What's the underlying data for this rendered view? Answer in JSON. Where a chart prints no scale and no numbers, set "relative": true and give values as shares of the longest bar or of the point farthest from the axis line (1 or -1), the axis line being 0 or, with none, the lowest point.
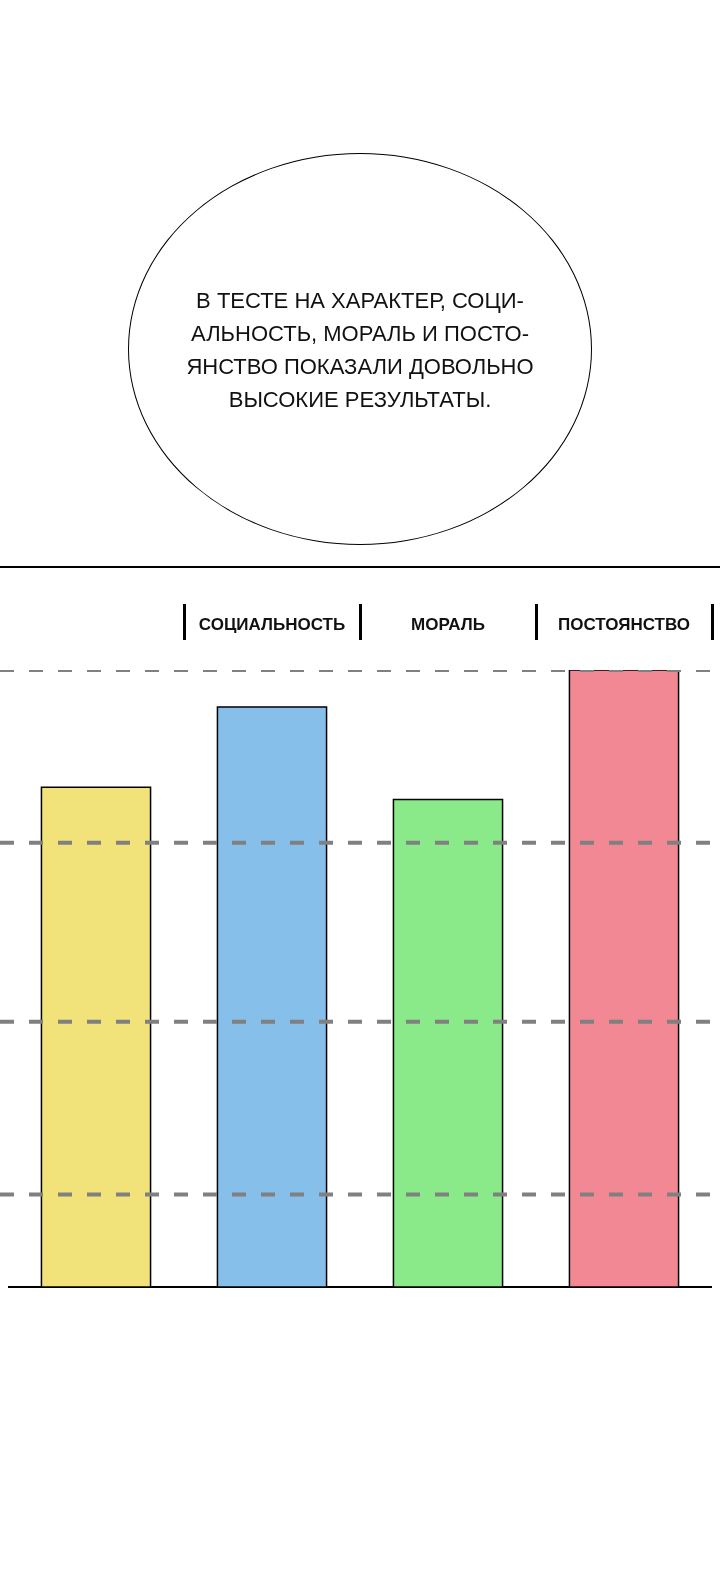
{
  "chart_data": {
    "type": "bar",
    "relative": true,
    "categories": [
      null,
      "СОЦИАЛЬНОСТЬ",
      "МОРАЛЬ",
      "ПОСТОЯНСТВО"
    ],
    "values": [
      0.81,
      0.94,
      0.79,
      1
    ],
    "colors": [
      "#f2e27a",
      "#86bfea",
      "#8aea8a",
      "#f28894"
    ],
    "ref_lines": [
      {
        "axis": "y",
        "value": 1,
        "color": "#808080",
        "line_style": "dashed"
      },
      {
        "axis": "y",
        "value": 0.72,
        "color": "#808080",
        "line_style": "dashed"
      },
      {
        "axis": "y",
        "value": 0.43,
        "color": "#808080",
        "line_style": "dashed"
      },
      {
        "axis": "y",
        "value": 0.15,
        "color": "#808080",
        "line_style": "dashed"
      }
    ],
    "annotations": [
      "В ТЕСТЕ НА ХАРАКТЕР, СОЦИ-\nАЛЬНОСТЬ, МОРАЛЬ И ПОСТО-\nЯНСТВО ПОКАЗАЛИ ДОВОЛЬНО\nВЫСОКИЕ РЕЗУЛЬТАТЫ."
    ]
  }
}
